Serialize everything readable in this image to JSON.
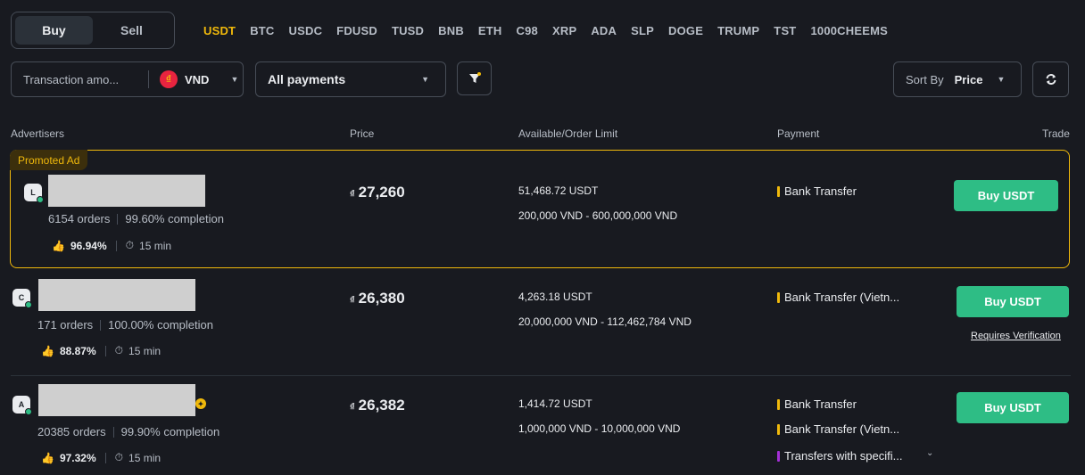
{
  "trade_toggle": {
    "buy": "Buy",
    "sell": "Sell"
  },
  "coins": [
    "USDT",
    "BTC",
    "USDC",
    "FDUSD",
    "TUSD",
    "BNB",
    "ETH",
    "C98",
    "XRP",
    "ADA",
    "SLP",
    "DOGE",
    "TRUMP",
    "TST",
    "1000CHEEMS"
  ],
  "active_coin": "USDT",
  "filters": {
    "amount_placeholder": "Transaction amo...",
    "currency": "VND",
    "currency_symbol": "₫",
    "payments": "All payments",
    "sort_label": "Sort By",
    "sort_value": "Price"
  },
  "table_headers": {
    "advertisers": "Advertisers",
    "price": "Price",
    "available": "Available/Order Limit",
    "payment": "Payment",
    "trade": "Trade"
  },
  "promo_label": "Promoted Ad",
  "currency_prefix": "₫",
  "ads": [
    {
      "initial": "L",
      "orders": "6154 orders",
      "completion": "99.60% completion",
      "positive": "96.94%",
      "time": "15 min",
      "price": "27,260",
      "available": "51,468.72 USDT",
      "limit": "200,000 VND - 600,000,000 VND",
      "payments": [
        "Bank Transfer"
      ],
      "button": "Buy USDT"
    },
    {
      "initial": "C",
      "orders": "171 orders",
      "completion": "100.00% completion",
      "positive": "88.87%",
      "time": "15 min",
      "price": "26,380",
      "available": "4,263.18 USDT",
      "limit": "20,000,000 VND - 112,462,784 VND",
      "payments": [
        "Bank Transfer (Vietn..."
      ],
      "button": "Buy USDT",
      "note": "Requires Verification"
    },
    {
      "initial": "A",
      "orders": "20385 orders",
      "completion": "99.90% completion",
      "positive": "97.32%",
      "time": "15 min",
      "price": "26,382",
      "available": "1,414.72 USDT",
      "limit": "1,000,000 VND - 10,000,000 VND",
      "payments": [
        "Bank Transfer",
        "Bank Transfer (Vietn...",
        "Transfers with specifi..."
      ],
      "button": "Buy USDT"
    }
  ],
  "colors": {
    "accent": "#f0b90b",
    "buy_green": "#2ebd85",
    "background": "#181a20",
    "pay_bar_yellow": "#f0b90b",
    "pay_bar_purple": "#a42fd6"
  }
}
